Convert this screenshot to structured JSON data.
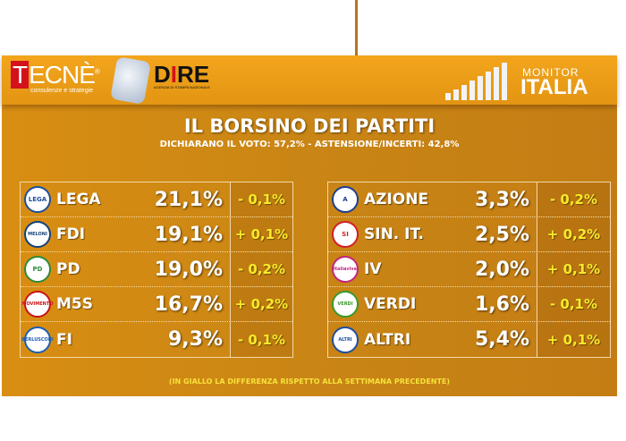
{
  "header": {
    "tecne": "TECNÈ",
    "tecne_reg": "®",
    "tecne_tag": "consulenze e strategie",
    "dire": "DIRE",
    "dire_tag": "AGENZIA DI STAMPA NAZIONALE",
    "monitor": "MONITOR",
    "italia": "ITALIA"
  },
  "title": "IL BORSINO DEI PARTITI",
  "subtitle": "DICHIARANO IL VOTO: 57,2% - ASTENSIONE/INCERTI: 42,8%",
  "left": [
    {
      "logo": "LEGA",
      "name": "LEGA",
      "pct": "21,1%",
      "diff": "- 0,1%",
      "color": "#1f4f9c"
    },
    {
      "logo": "MELONI",
      "name": "FDI",
      "pct": "19,1%",
      "diff": "+ 0,1%",
      "color": "#13437a"
    },
    {
      "logo": "PD",
      "name": "PD",
      "pct": "19,0%",
      "diff": "- 0,2%",
      "color": "#2f8a3a"
    },
    {
      "logo": "MOVIMENTO",
      "name": "M5S",
      "pct": "16,7%",
      "diff": "+ 0,2%",
      "color": "#c9131a"
    },
    {
      "logo": "BERLUSCONI",
      "name": "FI",
      "pct": "9,3%",
      "diff": "- 0,1%",
      "color": "#1b5fb1"
    }
  ],
  "right": [
    {
      "logo": "A",
      "name": "AZIONE",
      "pct": "3,3%",
      "diff": "- 0,2%",
      "color": "#1e3f8f"
    },
    {
      "logo": "SI",
      "name": "SIN. IT.",
      "pct": "2,5%",
      "diff": "+ 0,2%",
      "color": "#d21f2a"
    },
    {
      "logo": "italiaviva",
      "name": "IV",
      "pct": "2,0%",
      "diff": "+ 0,1%",
      "color": "#c0267d"
    },
    {
      "logo": "VERDI",
      "name": "VERDI",
      "pct": "1,6%",
      "diff": "- 0,1%",
      "color": "#3a9a2c"
    },
    {
      "logo": "ALTRI",
      "name": "ALTRI",
      "pct": "5,4%",
      "diff": "+ 0,1%",
      "color": "#1e4fa0"
    }
  ],
  "footer": "(IN GIALLO LA DIFFERENZA RISPETTO ALLA SETTIMANA PRECEDENTE)"
}
